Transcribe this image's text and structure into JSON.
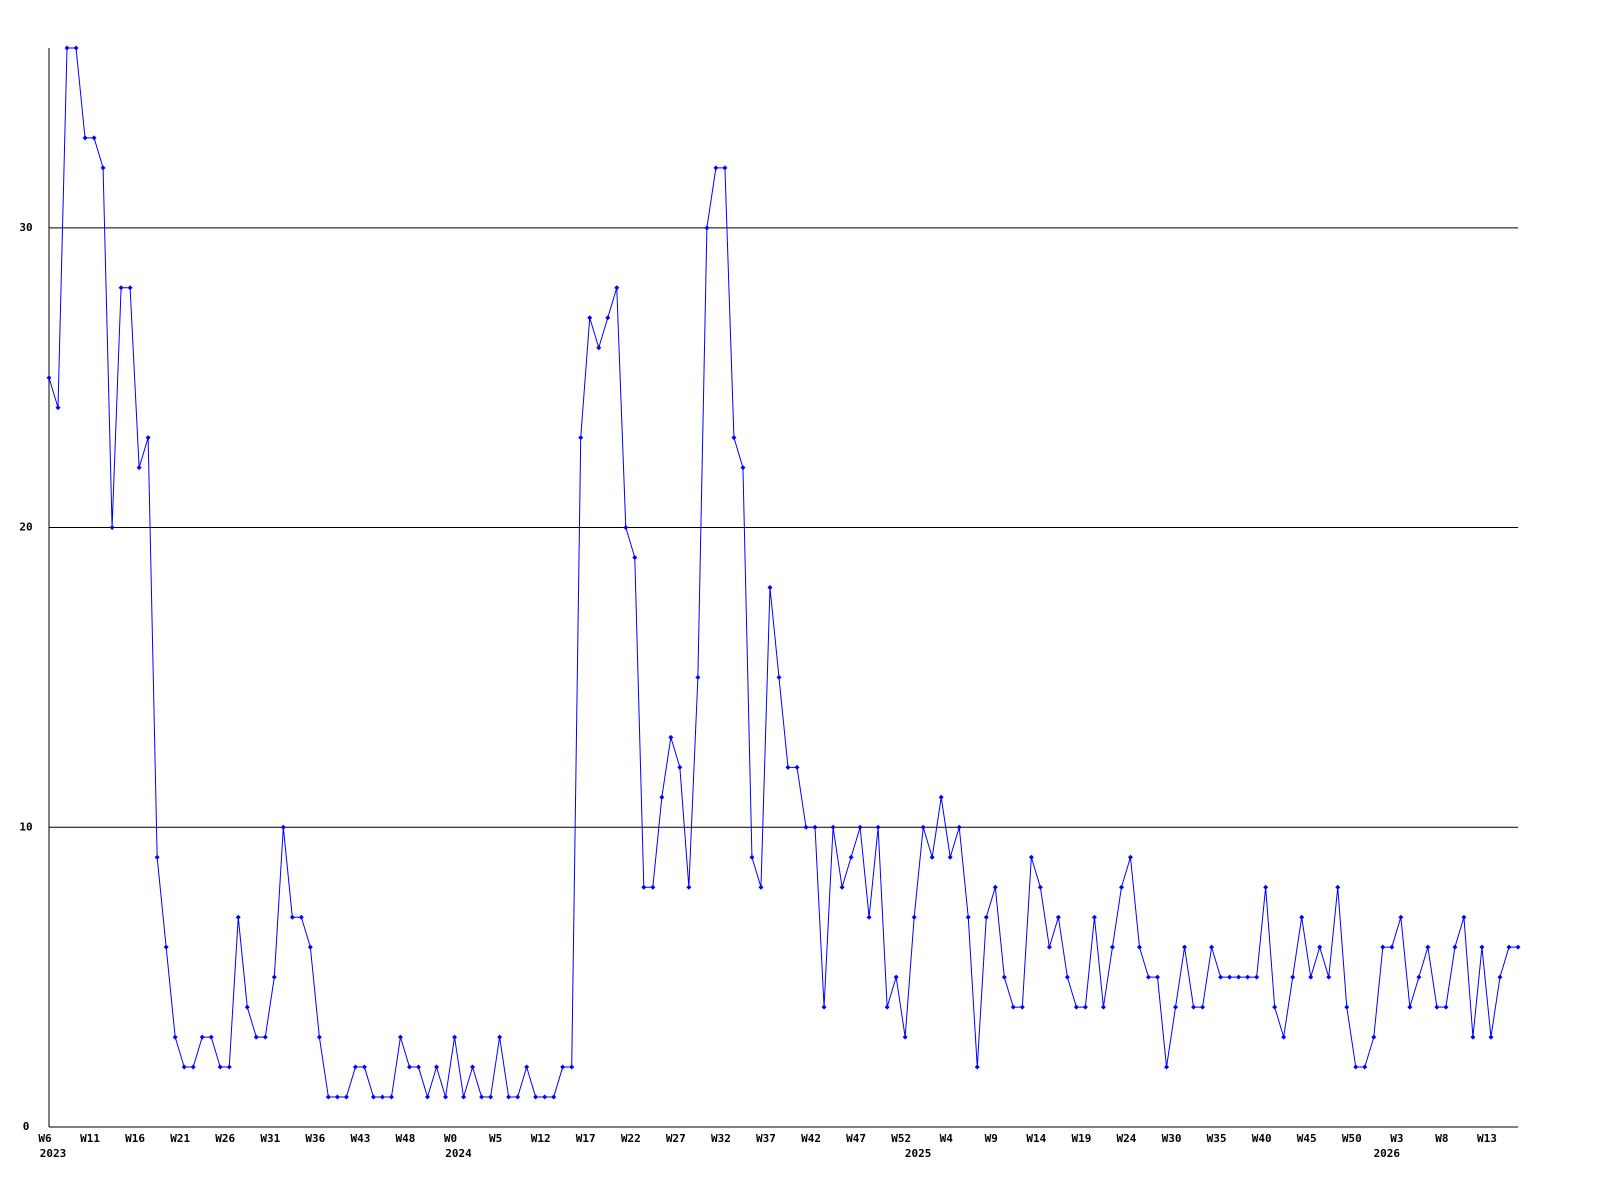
{
  "chart_data": {
    "type": "line",
    "color": "#0000ff",
    "grid": true,
    "ylim": [
      0,
      36
    ],
    "yticks": [
      0,
      10,
      20,
      30
    ],
    "xlim": [
      0,
      163
    ],
    "categories": [
      "W6",
      null,
      null,
      null,
      null,
      "W11",
      null,
      null,
      null,
      null,
      "W16",
      null,
      null,
      null,
      null,
      "W21",
      null,
      null,
      null,
      null,
      "W26",
      null,
      null,
      null,
      null,
      "W31",
      null,
      null,
      null,
      null,
      "W36",
      null,
      null,
      null,
      null,
      "W43",
      null,
      null,
      null,
      null,
      "W48",
      null,
      null,
      null,
      null,
      "W0",
      null,
      null,
      null,
      null,
      "W5",
      null,
      null,
      null,
      null,
      "W12",
      null,
      null,
      null,
      null,
      "W17",
      null,
      null,
      null,
      null,
      "W22",
      null,
      null,
      null,
      null,
      "W27",
      null,
      null,
      null,
      null,
      "W32",
      null,
      null,
      null,
      null,
      "W37",
      null,
      null,
      null,
      null,
      "W42",
      null,
      null,
      null,
      null,
      "W47",
      null,
      null,
      null,
      null,
      "W52",
      null,
      null,
      null,
      null,
      "W4",
      null,
      null,
      null,
      null,
      "W9",
      null,
      null,
      null,
      null,
      "W14",
      null,
      null,
      null,
      null,
      "W19",
      null,
      null,
      null,
      null,
      "W24",
      null,
      null,
      null,
      null,
      "W30",
      null,
      null,
      null,
      null,
      "W35",
      null,
      null,
      null,
      null,
      "W40",
      null,
      null,
      null,
      null,
      "W45",
      null,
      null,
      null,
      null,
      "W50",
      null,
      null,
      null,
      null,
      "W3",
      null,
      null,
      null,
      null,
      "W8",
      null,
      null,
      null,
      null,
      "W13",
      null,
      null,
      null
    ],
    "x_year_ticks": [
      {
        "value": 0,
        "label": "2023"
      },
      {
        "value": 45,
        "label": "2024"
      },
      {
        "value": 96,
        "label": "2025"
      },
      {
        "value": 148,
        "label": "2026"
      }
    ],
    "values": [
      25,
      24,
      36,
      36,
      33,
      33,
      32,
      20,
      28,
      28,
      22,
      23,
      9,
      6,
      3,
      2,
      2,
      3,
      3,
      2,
      2,
      7,
      4,
      3,
      3,
      5,
      10,
      7,
      7,
      6,
      3,
      1,
      1,
      1,
      2,
      2,
      1,
      1,
      1,
      3,
      2,
      2,
      1,
      2,
      1,
      3,
      1,
      2,
      1,
      1,
      3,
      1,
      1,
      2,
      1,
      1,
      1,
      2,
      2,
      23,
      27,
      26,
      27,
      28,
      20,
      19,
      8,
      8,
      11,
      13,
      12,
      8,
      15,
      30,
      32,
      32,
      23,
      22,
      9,
      8,
      18,
      15,
      12,
      12,
      10,
      10,
      4,
      10,
      8,
      9,
      10,
      7,
      10,
      4,
      5,
      3,
      7,
      10,
      9,
      11,
      9,
      10,
      7,
      2,
      7,
      8,
      5,
      4,
      4,
      9,
      8,
      6,
      7,
      5,
      4,
      4,
      7,
      4,
      6,
      8,
      9,
      6,
      5,
      5,
      2,
      4,
      6,
      4,
      4,
      6,
      5,
      5,
      5,
      5,
      5,
      8,
      4,
      3,
      5,
      7,
      5,
      6,
      5,
      8,
      4,
      2,
      2,
      3,
      6,
      6,
      7,
      4,
      5,
      6,
      4,
      4,
      6,
      7,
      3,
      6,
      3,
      5,
      6,
      6
    ]
  }
}
